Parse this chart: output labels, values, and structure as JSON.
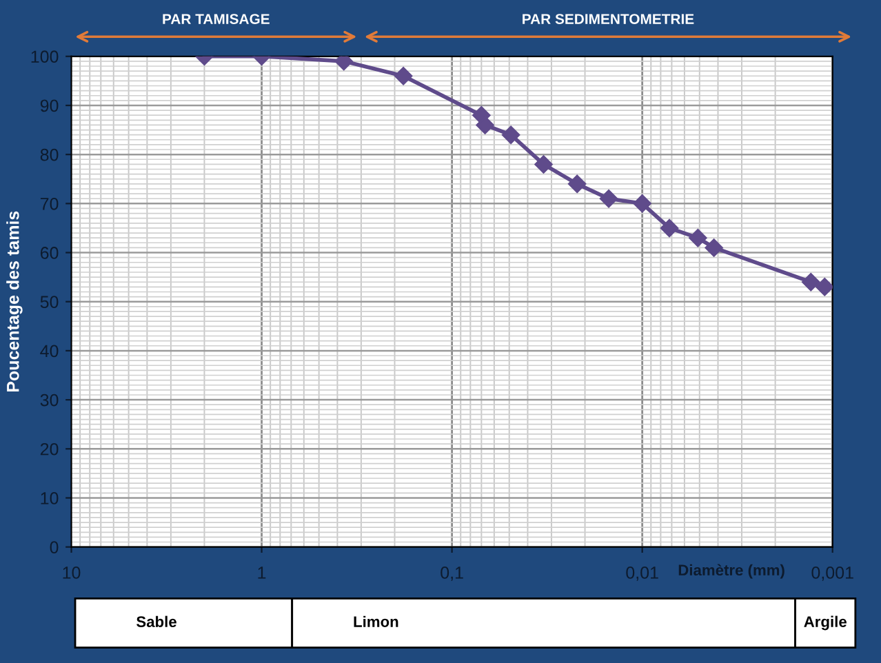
{
  "chart_data": {
    "type": "line",
    "xlabel": "Diamètre (mm)",
    "ylabel": "Poucentage des tamis",
    "x": [
      2,
      1,
      0.37,
      0.18,
      0.07,
      0.067,
      0.049,
      0.033,
      0.022,
      0.015,
      0.01,
      0.0072,
      0.0051,
      0.0042,
      0.0013,
      0.0011
    ],
    "series": [
      {
        "color": "#5f4b8b",
        "values": [
          100,
          100,
          99,
          96,
          88,
          86,
          84,
          78,
          74,
          71,
          70,
          65,
          63,
          61,
          54,
          53
        ]
      }
    ],
    "log": "x",
    "marker": "diamond",
    "line_style": "solid",
    "grid": true,
    "xlim": [
      10,
      0.001
    ],
    "xticks": [
      {
        "value": 10,
        "label": "10"
      },
      {
        "value": 1,
        "label": "1"
      },
      {
        "value": 0.1,
        "label": "0,1"
      },
      {
        "value": 0.01,
        "label": "0,01"
      },
      {
        "value": 0.001,
        "label": "0,001"
      }
    ],
    "ylim": [
      0,
      100
    ],
    "yticks": [
      0,
      10,
      20,
      30,
      40,
      50,
      60,
      70,
      80,
      90,
      100
    ],
    "annotations": [
      "PAR TAMISAGE",
      "PAR SEDIMENTOMETRIE",
      "Sable",
      "Limon",
      "Argile"
    ]
  }
}
